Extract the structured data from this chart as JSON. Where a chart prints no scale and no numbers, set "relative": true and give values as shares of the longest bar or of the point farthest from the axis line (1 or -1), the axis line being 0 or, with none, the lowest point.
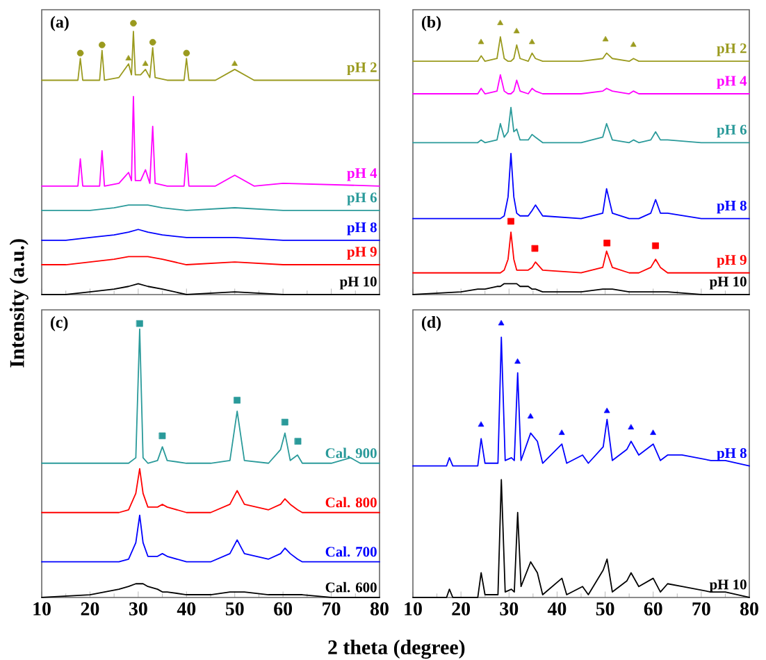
{
  "chart_data": [
    {
      "type": "line",
      "title": "(a)",
      "ylabel": "Intensity (a.u.)",
      "relative": true,
      "xlim": [
        10,
        80
      ],
      "xticks": [
        10,
        20,
        30,
        40,
        50,
        60,
        70,
        80
      ],
      "tick_labels": false,
      "legend": false,
      "series": [
        {
          "name": "pH 10",
          "color": "#000000",
          "x": [
            10,
            15,
            20,
            25,
            28,
            30,
            32,
            35,
            40,
            50,
            60,
            70,
            80
          ],
          "values": [
            0,
            0,
            0.01,
            0.02,
            0.03,
            0.04,
            0.03,
            0.02,
            0,
            0.01,
            0,
            0,
            0
          ]
        },
        {
          "name": "pH 9",
          "color": "#ff0000",
          "x": [
            10,
            15,
            20,
            25,
            28,
            30,
            32,
            35,
            40,
            50,
            60,
            70,
            80
          ],
          "values": [
            0.11,
            0.11,
            0.12,
            0.13,
            0.14,
            0.14,
            0.14,
            0.13,
            0.11,
            0.12,
            0.11,
            0.11,
            0.11
          ]
        },
        {
          "name": "pH 8",
          "color": "#0000ff",
          "x": [
            10,
            15,
            20,
            25,
            28,
            30,
            32,
            35,
            40,
            50,
            60,
            70,
            80
          ],
          "values": [
            0.2,
            0.2,
            0.21,
            0.22,
            0.23,
            0.24,
            0.23,
            0.22,
            0.21,
            0.21,
            0.2,
            0.2,
            0.2
          ]
        },
        {
          "name": "pH 6",
          "color": "#2a9a9a",
          "x": [
            10,
            15,
            20,
            25,
            28,
            30,
            32,
            35,
            40,
            50,
            60,
            70,
            80
          ],
          "values": [
            0.31,
            0.31,
            0.31,
            0.32,
            0.33,
            0.33,
            0.33,
            0.32,
            0.31,
            0.32,
            0.31,
            0.31,
            0.31
          ]
        },
        {
          "name": "pH 4",
          "color": "#ff00ff",
          "x": [
            10,
            17.5,
            18,
            18.5,
            22,
            22.5,
            23,
            26,
            28,
            28.6,
            29,
            29.4,
            30.5,
            31.5,
            32.4,
            33,
            33.5,
            36,
            39.5,
            40,
            40.5,
            46,
            50,
            54,
            60,
            80
          ],
          "values": [
            0.4,
            0.4,
            0.5,
            0.4,
            0.4,
            0.53,
            0.4,
            0.41,
            0.45,
            0.42,
            0.73,
            0.42,
            0.42,
            0.46,
            0.41,
            0.62,
            0.41,
            0.4,
            0.4,
            0.52,
            0.4,
            0.4,
            0.44,
            0.4,
            0.41,
            0.4
          ]
        },
        {
          "name": "pH 2",
          "color": "#9a9a1e",
          "x": [
            10,
            17.5,
            18,
            18.5,
            22,
            22.5,
            23,
            26,
            28,
            28.6,
            29,
            29.4,
            30.5,
            31.5,
            32.4,
            33,
            33.5,
            36,
            39.5,
            40,
            40.5,
            46,
            50,
            54,
            60,
            80
          ],
          "values": [
            0.79,
            0.79,
            0.87,
            0.79,
            0.79,
            0.9,
            0.79,
            0.8,
            0.85,
            0.81,
            0.97,
            0.81,
            0.81,
            0.83,
            0.8,
            0.91,
            0.8,
            0.79,
            0.79,
            0.87,
            0.79,
            0.79,
            0.83,
            0.79,
            0.79,
            0.79
          ]
        },
        {
          "type": "scatter",
          "marker": "circle",
          "color": "#9a9a1e",
          "x": [
            18,
            22.5,
            29,
            33,
            40
          ],
          "values": [
            0.89,
            0.92,
            1,
            0.93,
            0.89
          ]
        },
        {
          "type": "scatter",
          "marker": "triangle",
          "color": "#9a9a1e",
          "x": [
            28,
            31.5,
            50
          ],
          "values": [
            0.87,
            0.85,
            0.85
          ]
        }
      ]
    },
    {
      "type": "line",
      "title": "(b)",
      "relative": true,
      "xlim": [
        10,
        80
      ],
      "xticks": [
        10,
        20,
        30,
        40,
        50,
        60,
        70,
        80
      ],
      "tick_labels": false,
      "legend": false,
      "series": [
        {
          "name": "pH 10",
          "color": "#000000",
          "x": [
            10,
            20,
            23.5,
            24.2,
            25,
            27.5,
            28.2,
            29,
            29.8,
            30.4,
            31,
            31.6,
            32.3,
            34,
            34.8,
            35.5,
            37,
            45,
            49.5,
            50.3,
            51.5,
            55,
            55.9,
            57,
            59.5,
            60.5,
            61.5,
            63,
            70,
            80
          ],
          "values": [
            0,
            0.01,
            0.02,
            0.02,
            0.02,
            0.03,
            0.03,
            0.04,
            0.04,
            0.04,
            0.04,
            0.04,
            0.03,
            0.03,
            0.02,
            0.02,
            0.01,
            0.01,
            0.02,
            0.02,
            0.02,
            0.01,
            0.01,
            0.01,
            0.01,
            0.01,
            0.01,
            0.01,
            0,
            0
          ]
        },
        {
          "name": "pH 9",
          "color": "#ff0000",
          "x": [
            10,
            20,
            23.5,
            24.2,
            25,
            27.5,
            28.2,
            29,
            29.8,
            30.4,
            31,
            31.6,
            32.3,
            34,
            34.8,
            35.5,
            37,
            45,
            49.5,
            50.3,
            51.5,
            55,
            55.9,
            57,
            59.5,
            60.5,
            61.5,
            63,
            70,
            80
          ],
          "values": [
            0.08,
            0.08,
            0.08,
            0.08,
            0.08,
            0.08,
            0.08,
            0.09,
            0.13,
            0.23,
            0.13,
            0.09,
            0.09,
            0.09,
            0.1,
            0.12,
            0.09,
            0.08,
            0.1,
            0.16,
            0.1,
            0.08,
            0.08,
            0.08,
            0.1,
            0.13,
            0.1,
            0.08,
            0.08,
            0.08
          ]
        },
        {
          "name": "pH 8",
          "color": "#0000ff",
          "x": [
            10,
            20,
            23.5,
            24.2,
            25,
            27.5,
            28.2,
            29,
            29.8,
            30.4,
            31,
            31.6,
            32.3,
            34,
            34.8,
            35.5,
            37,
            45,
            49.5,
            50.3,
            51.5,
            55,
            55.9,
            57,
            59.5,
            60.5,
            61.5,
            63,
            70,
            80
          ],
          "values": [
            0.28,
            0.28,
            0.28,
            0.28,
            0.28,
            0.28,
            0.28,
            0.29,
            0.36,
            0.52,
            0.36,
            0.3,
            0.29,
            0.29,
            0.31,
            0.33,
            0.29,
            0.28,
            0.3,
            0.39,
            0.3,
            0.28,
            0.28,
            0.28,
            0.3,
            0.35,
            0.3,
            0.3,
            0.28,
            0.28
          ]
        },
        {
          "name": "pH 6",
          "color": "#2a9a9a",
          "x": [
            10,
            20,
            23.5,
            24.2,
            25,
            27.5,
            28.2,
            29,
            29.8,
            30.4,
            31,
            31.6,
            32.3,
            34,
            34.8,
            35.5,
            37,
            45,
            49.5,
            50.3,
            51.5,
            55,
            55.9,
            57,
            59.5,
            60.5,
            61.5,
            63,
            70,
            80
          ],
          "values": [
            0.56,
            0.56,
            0.56,
            0.57,
            0.56,
            0.57,
            0.63,
            0.58,
            0.6,
            0.69,
            0.6,
            0.61,
            0.57,
            0.57,
            0.59,
            0.58,
            0.56,
            0.56,
            0.58,
            0.63,
            0.57,
            0.56,
            0.57,
            0.56,
            0.57,
            0.6,
            0.57,
            0.57,
            0.56,
            0.56
          ]
        },
        {
          "name": "pH 4",
          "color": "#ff00ff",
          "x": [
            10,
            20,
            23.5,
            24.2,
            25,
            27.5,
            28.2,
            29,
            29.8,
            30.4,
            31,
            31.6,
            32.3,
            34,
            34.8,
            35.5,
            37,
            45,
            49.5,
            50.3,
            51.5,
            55,
            55.9,
            57,
            59.5,
            60.5,
            61.5,
            63,
            70,
            80
          ],
          "values": [
            0.74,
            0.74,
            0.74,
            0.76,
            0.74,
            0.75,
            0.81,
            0.75,
            0.74,
            0.74,
            0.75,
            0.79,
            0.75,
            0.74,
            0.76,
            0.75,
            0.74,
            0.74,
            0.75,
            0.76,
            0.75,
            0.74,
            0.75,
            0.74,
            0.74,
            0.74,
            0.74,
            0.74,
            0.74,
            0.74
          ]
        },
        {
          "name": "pH 2",
          "color": "#9a9a1e",
          "x": [
            10,
            20,
            23.5,
            24.2,
            25,
            27.5,
            28.2,
            29,
            29.8,
            30.4,
            31,
            31.6,
            32.3,
            34,
            34.8,
            35.5,
            37,
            45,
            49.5,
            50.3,
            51.5,
            55,
            55.9,
            57,
            59.5,
            60.5,
            61.5,
            63,
            70,
            80
          ],
          "values": [
            0.86,
            0.86,
            0.86,
            0.88,
            0.86,
            0.87,
            0.95,
            0.87,
            0.86,
            0.86,
            0.87,
            0.92,
            0.87,
            0.86,
            0.89,
            0.87,
            0.86,
            0.86,
            0.87,
            0.89,
            0.87,
            0.86,
            0.87,
            0.86,
            0.86,
            0.86,
            0.86,
            0.86,
            0.86,
            0.86
          ]
        },
        {
          "type": "scatter",
          "marker": "triangle",
          "color": "#9a9a1e",
          "x": [
            24.2,
            28.2,
            31.6,
            34.8,
            50.1,
            55.9
          ],
          "values": [
            0.93,
            1,
            0.97,
            0.93,
            0.94,
            0.92
          ]
        },
        {
          "type": "scatter",
          "marker": "square",
          "color": "#ff0000",
          "x": [
            30.4,
            35.4,
            50.4,
            60.5
          ],
          "values": [
            0.27,
            0.17,
            0.19,
            0.18
          ]
        }
      ]
    },
    {
      "type": "line",
      "title": "(c)",
      "xlabel": "2 theta (degree)",
      "relative": true,
      "xlim": [
        10,
        80
      ],
      "xticks": [
        10,
        20,
        30,
        40,
        50,
        60,
        70,
        80
      ],
      "tick_labels": "x",
      "legend": false,
      "series": [
        {
          "name": "Cal. 600",
          "color": "#000000",
          "x": [
            10,
            20,
            26,
            28,
            29.5,
            30.3,
            31,
            32,
            34,
            35,
            36,
            40,
            45,
            49,
            50.5,
            52,
            57,
            59.5,
            60.4,
            61.5,
            63,
            64,
            70,
            74,
            76,
            80
          ],
          "values": [
            0,
            0.01,
            0.03,
            0.04,
            0.05,
            0.05,
            0.05,
            0.04,
            0.03,
            0.02,
            0.02,
            0.01,
            0.01,
            0.02,
            0.02,
            0.02,
            0.01,
            0.01,
            0.01,
            0.01,
            0.01,
            0.01,
            0,
            0,
            0,
            0
          ]
        },
        {
          "name": "Cal. 700",
          "color": "#0000ff",
          "x": [
            10,
            20,
            26,
            28,
            29.5,
            30.3,
            31,
            32,
            34,
            35,
            36,
            40,
            45,
            49,
            50.5,
            52,
            57,
            59.5,
            60.4,
            61.5,
            63,
            64,
            70,
            74,
            76,
            80
          ],
          "values": [
            0.13,
            0.13,
            0.13,
            0.14,
            0.2,
            0.3,
            0.2,
            0.15,
            0.15,
            0.16,
            0.15,
            0.13,
            0.13,
            0.16,
            0.21,
            0.16,
            0.14,
            0.16,
            0.18,
            0.16,
            0.14,
            0.13,
            0.13,
            0.13,
            0.13,
            0.13
          ]
        },
        {
          "name": "Cal. 800",
          "color": "#ff0000",
          "x": [
            10,
            20,
            26,
            28,
            29.5,
            30.3,
            31,
            32,
            34,
            35,
            36,
            40,
            45,
            49,
            50.5,
            52,
            57,
            59.5,
            60.4,
            61.5,
            63,
            64,
            70,
            74,
            76,
            80
          ],
          "values": [
            0.31,
            0.31,
            0.31,
            0.32,
            0.38,
            0.47,
            0.38,
            0.33,
            0.33,
            0.34,
            0.33,
            0.31,
            0.31,
            0.34,
            0.39,
            0.34,
            0.32,
            0.34,
            0.36,
            0.34,
            0.32,
            0.31,
            0.31,
            0.31,
            0.31,
            0.31
          ]
        },
        {
          "name": "Cal. 900",
          "color": "#2a9a9a",
          "x": [
            10,
            20,
            26,
            28,
            29.5,
            30.3,
            31,
            32,
            34,
            35,
            36,
            40,
            45,
            49,
            50.5,
            52,
            57,
            59.5,
            60.4,
            61.5,
            63,
            64,
            70,
            74,
            76,
            80
          ],
          "values": [
            0.49,
            0.49,
            0.49,
            0.49,
            0.51,
            0.98,
            0.51,
            0.49,
            0.5,
            0.55,
            0.5,
            0.49,
            0.49,
            0.5,
            0.68,
            0.5,
            0.49,
            0.54,
            0.6,
            0.5,
            0.52,
            0.49,
            0.49,
            0.51,
            0.49,
            0.49
          ]
        },
        {
          "type": "scatter",
          "marker": "square",
          "color": "#2a9a9a",
          "x": [
            30.3,
            35,
            50.5,
            60.4,
            63.1
          ],
          "values": [
            1,
            0.59,
            0.72,
            0.64,
            0.57
          ]
        }
      ]
    },
    {
      "type": "line",
      "title": "(d)",
      "relative": true,
      "xlim": [
        10,
        80
      ],
      "xticks": [
        10,
        20,
        30,
        40,
        50,
        60,
        70,
        80
      ],
      "tick_labels": "x",
      "legend": false,
      "series": [
        {
          "name": "pH 10",
          "color": "#000000",
          "x": [
            10,
            17,
            17.6,
            18.3,
            23.5,
            24.2,
            25,
            27.7,
            28.4,
            29.2,
            30.5,
            31.1,
            31.8,
            32.5,
            34.5,
            35.9,
            37,
            41,
            42,
            45.3,
            46.5,
            49.6,
            50.4,
            51.5,
            54.5,
            55.4,
            57,
            60,
            61.5,
            63,
            66,
            72,
            75,
            80
          ],
          "values": [
            0,
            0,
            0.03,
            0,
            0,
            0.09,
            0.01,
            0.01,
            0.43,
            0.02,
            0.03,
            0.02,
            0.31,
            0.04,
            0.13,
            0.09,
            0.01,
            0.07,
            0.01,
            0.04,
            0.01,
            0.1,
            0.14,
            0.02,
            0.06,
            0.09,
            0.04,
            0.07,
            0.02,
            0.05,
            0.04,
            0.02,
            0.02,
            0
          ]
        },
        {
          "name": "pH 8",
          "color": "#0000ff",
          "x": [
            10,
            17,
            17.6,
            18.3,
            23.5,
            24.2,
            25,
            27.7,
            28.4,
            29.2,
            30.5,
            31.1,
            31.8,
            32.5,
            34.5,
            35.9,
            37,
            41,
            42,
            45.3,
            46.5,
            49.6,
            50.4,
            51.5,
            54.5,
            55.4,
            57,
            60,
            61.5,
            63,
            66,
            72,
            75,
            80
          ],
          "values": [
            0.48,
            0.48,
            0.51,
            0.48,
            0.48,
            0.58,
            0.49,
            0.49,
            0.95,
            0.5,
            0.51,
            0.5,
            0.82,
            0.5,
            0.6,
            0.57,
            0.49,
            0.56,
            0.49,
            0.52,
            0.49,
            0.55,
            0.65,
            0.5,
            0.54,
            0.57,
            0.52,
            0.56,
            0.5,
            0.52,
            0.52,
            0.5,
            0.5,
            0.48
          ]
        },
        {
          "type": "scatter",
          "marker": "triangle",
          "color": "#0000ff",
          "x": [
            24.2,
            28.4,
            31.8,
            34.5,
            41,
            50.4,
            55.4,
            60
          ],
          "values": [
            0.63,
            1,
            0.86,
            0.66,
            0.6,
            0.68,
            0.62,
            0.6
          ]
        }
      ]
    }
  ]
}
